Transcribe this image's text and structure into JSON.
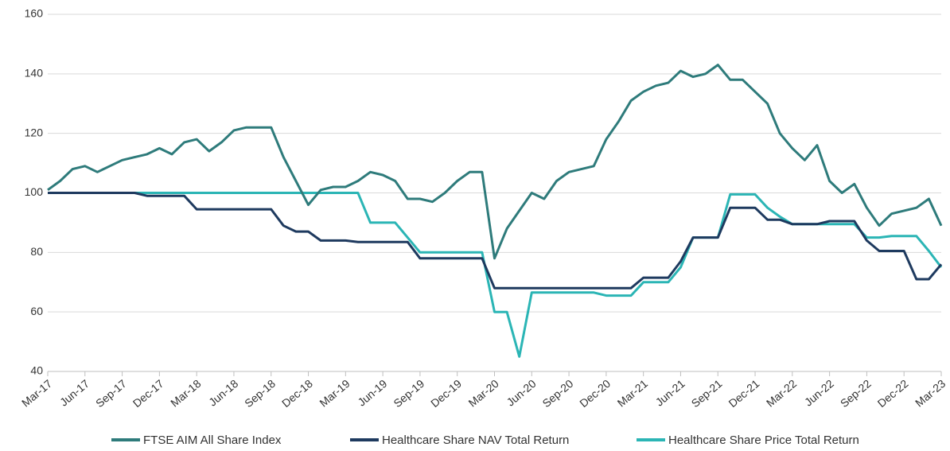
{
  "chart_data": {
    "type": "line",
    "categories": [
      "Mar-17",
      null,
      null,
      "Jun-17",
      null,
      null,
      "Sep-17",
      null,
      null,
      "Dec-17",
      null,
      null,
      "Mar-18",
      null,
      null,
      "Jun-18",
      null,
      null,
      "Sep-18",
      null,
      null,
      "Dec-18",
      null,
      null,
      "Mar-19",
      null,
      null,
      "Jun-19",
      null,
      null,
      "Sep-19",
      null,
      null,
      "Dec-19",
      null,
      null,
      "Mar-20",
      null,
      null,
      "Jun-20",
      null,
      null,
      "Sep-20",
      null,
      null,
      "Dec-20",
      null,
      null,
      "Mar-21",
      null,
      null,
      "Jun-21",
      null,
      null,
      "Sep-21",
      null,
      null,
      "Dec-21",
      null,
      null,
      "Mar-22",
      null,
      null,
      "Jun-22",
      null,
      null,
      "Sep-22",
      null,
      null,
      "Dec-22",
      null,
      null,
      "Mar-23"
    ],
    "series": [
      {
        "name": "FTSE AIM All Share Index",
        "color": "#2e7b7b",
        "values": [
          101,
          104,
          108,
          109,
          107,
          109,
          111,
          112,
          113,
          115,
          113,
          117,
          118,
          114,
          117,
          121,
          122,
          122,
          122,
          112,
          104,
          96,
          101,
          102,
          102,
          104,
          107,
          106,
          104,
          98,
          98,
          97,
          100,
          104,
          107,
          107,
          78,
          88,
          94,
          100,
          98,
          104,
          107,
          108,
          109,
          118,
          124,
          131,
          134,
          136,
          137,
          141,
          139,
          140,
          143,
          138,
          138,
          134,
          130,
          120,
          115,
          111,
          116,
          104,
          100,
          103,
          95,
          89,
          93,
          94,
          95,
          98,
          89
        ]
      },
      {
        "name": "Healthcare Share NAV Total Return",
        "color": "#1e3a5f",
        "values": [
          100,
          100,
          100,
          100,
          100,
          100,
          100,
          100,
          99,
          99,
          99,
          99,
          94.5,
          94.5,
          94.5,
          94.5,
          94.5,
          94.5,
          94.5,
          89,
          87,
          87,
          84,
          84,
          84,
          83.5,
          83.5,
          83.5,
          83.5,
          83.5,
          78,
          78,
          78,
          78,
          78,
          78,
          68,
          68,
          68,
          68,
          68,
          68,
          68,
          68,
          68,
          68,
          68,
          68,
          71.5,
          71.5,
          71.5,
          77,
          85,
          85,
          85,
          95,
          95,
          95,
          91,
          91,
          89.5,
          89.5,
          89.5,
          90.5,
          90.5,
          90.5,
          84,
          80.5,
          80.5,
          80.5,
          71,
          71,
          76
        ]
      },
      {
        "name": "Healthcare Share Price Total Return",
        "color": "#2bb5b5",
        "values": [
          100,
          100,
          100,
          100,
          100,
          100,
          100,
          100,
          100,
          100,
          100,
          100,
          100,
          100,
          100,
          100,
          100,
          100,
          100,
          100,
          100,
          100,
          100,
          100,
          100,
          100,
          90,
          90,
          90,
          85,
          80,
          80,
          80,
          80,
          80,
          80,
          60,
          60,
          45,
          66.5,
          66.5,
          66.5,
          66.5,
          66.5,
          66.5,
          65.5,
          65.5,
          65.5,
          70,
          70,
          70,
          75,
          85,
          85,
          85,
          99.5,
          99.5,
          99.5,
          95,
          92,
          89.5,
          89.5,
          89.5,
          89.5,
          89.5,
          89.5,
          85,
          85,
          85.5,
          85.5,
          85.5,
          80.5,
          75
        ]
      }
    ],
    "ylim": [
      40,
      160
    ],
    "yticks": [
      40,
      60,
      80,
      100,
      120,
      140,
      160
    ],
    "grid": true,
    "legend": "bottom"
  }
}
